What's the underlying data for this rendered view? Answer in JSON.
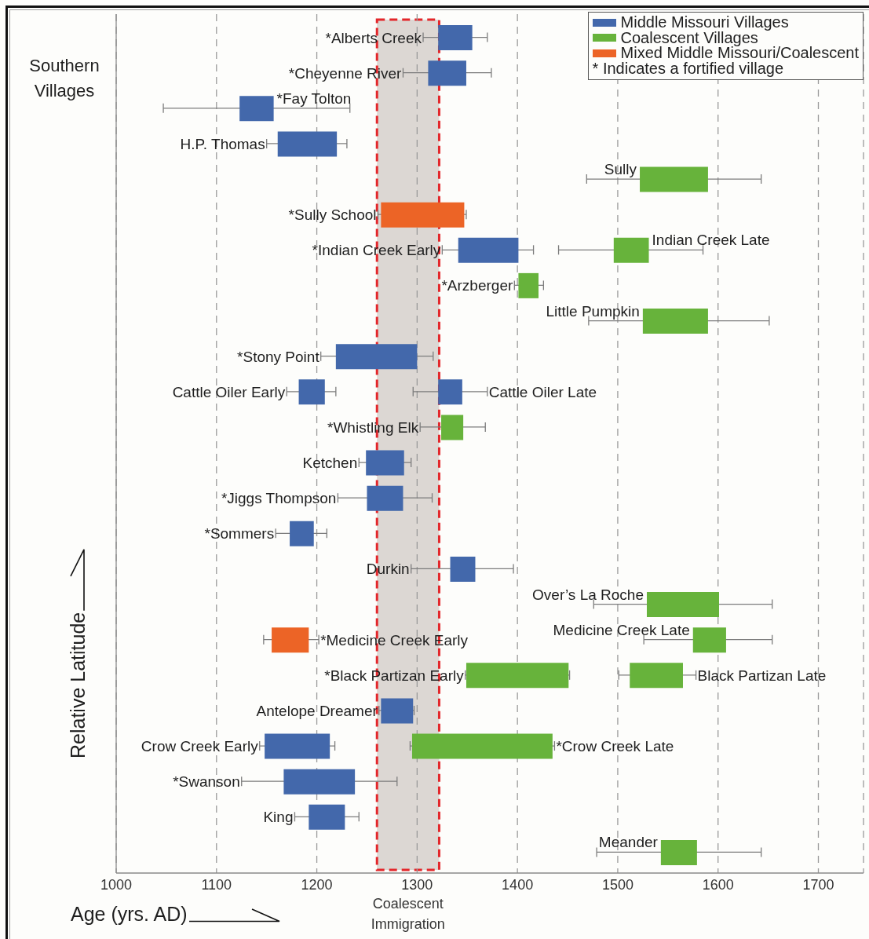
{
  "chart_data": {
    "type": "bar",
    "orientation": "horizontal",
    "xlabel": "Age (yrs. AD)",
    "ylabel": "Relative Latitude",
    "categories": [
      null,
      null,
      null,
      null,
      null,
      null,
      null,
      null,
      null,
      null,
      null,
      null,
      null,
      null,
      null,
      null,
      null,
      null,
      null,
      null,
      null,
      null,
      null,
      null
    ],
    "xlim": [
      1000,
      1745
    ],
    "xticks": [
      1000,
      1100,
      1200,
      1300,
      1400,
      1500,
      1600,
      1700
    ],
    "grid": "x",
    "legend": "top right",
    "tick_labels": "x",
    "series": [
      {
        "name": "Middle Missouri Villages",
        "color": "#4368ab",
        "base": [
          1321,
          1311,
          1123,
          1161,
          null,
          null,
          1341,
          null,
          null,
          1219,
          1182,
          null,
          1249,
          1250,
          1173,
          1333,
          null,
          null,
          null,
          1264,
          1148,
          1167,
          1192,
          null
        ],
        "values": [
          34,
          38,
          34,
          59,
          null,
          null,
          60,
          null,
          null,
          81,
          26,
          null,
          38,
          36,
          24,
          25,
          null,
          null,
          null,
          32,
          65,
          71,
          36,
          null
        ],
        "errors": [
          [
            1306,
            1370
          ],
          [
            1286,
            1374
          ],
          [
            1047,
            1233
          ],
          [
            1150,
            1230
          ],
          null,
          null,
          [
            1325,
            1416
          ],
          null,
          null,
          [
            1204,
            1316
          ],
          [
            1170,
            1219
          ],
          null,
          [
            1242,
            1294
          ],
          [
            1221,
            1315
          ],
          [
            1159,
            1210
          ],
          [
            1294,
            1396
          ],
          null,
          null,
          null,
          [
            1262,
            1297
          ],
          [
            1143,
            1218
          ],
          [
            1125,
            1280
          ],
          [
            1178,
            1242
          ],
          null
        ],
        "value_labels": [
          "*Alberts Creek",
          "*Cheyenne River",
          "*Fay Tolton",
          "H.P. Thomas",
          null,
          null,
          "*Indian Creek Early",
          null,
          null,
          "*Stony Point",
          "Cattle Oiler Early",
          null,
          "Ketchen",
          "*Jiggs Thompson",
          "*Sommers",
          "Durkin",
          null,
          null,
          null,
          "Antelope Dreamer",
          "Crow Creek Early",
          "*Swanson",
          "King",
          null
        ]
      },
      {
        "name": "Coalescent Villages",
        "color": "#67b33b",
        "base": [
          null,
          null,
          null,
          null,
          1522,
          null,
          1496,
          1401,
          1525,
          null,
          null,
          1324,
          null,
          null,
          null,
          null,
          1529,
          1575,
          1349,
          null,
          1295,
          null,
          null,
          1543
        ],
        "values": [
          null,
          null,
          null,
          null,
          68,
          null,
          35,
          20,
          65,
          null,
          null,
          22,
          null,
          null,
          null,
          null,
          72,
          33,
          102,
          null,
          140,
          null,
          null,
          36
        ],
        "errors": [
          null,
          null,
          null,
          null,
          [
            1469,
            1643
          ],
          null,
          [
            1441,
            1585
          ],
          [
            1397,
            1426
          ],
          [
            1471,
            1651
          ],
          null,
          null,
          [
            1303,
            1368
          ],
          null,
          null,
          null,
          null,
          [
            1476,
            1654
          ],
          [
            1526,
            1654
          ],
          [
            1348,
            1452
          ],
          null,
          [
            1293,
            1437
          ],
          null,
          null,
          [
            1479,
            1643
          ]
        ],
        "value_labels": [
          null,
          null,
          null,
          null,
          "Sully",
          null,
          "Indian Creek Late",
          "*Arzberger",
          "Little Pumpkin",
          null,
          null,
          "*Whistling Elk",
          null,
          null,
          null,
          null,
          "Over’s La Roche",
          "Medicine Creek Late",
          "*Black Partizan Early",
          null,
          "*Crow Creek Late",
          null,
          null,
          "Meander"
        ]
      },
      {
        "name": "Mixed Middle Missouri/Coalescent",
        "color": "#ec6426",
        "base": [
          null,
          null,
          null,
          null,
          null,
          1264,
          null,
          null,
          null,
          null,
          null,
          null,
          null,
          null,
          null,
          null,
          null,
          1155,
          null,
          null,
          null,
          null,
          null,
          null
        ],
        "values": [
          null,
          null,
          null,
          null,
          null,
          83,
          null,
          null,
          null,
          null,
          null,
          null,
          null,
          null,
          null,
          null,
          null,
          37,
          null,
          null,
          null,
          null,
          null,
          null
        ],
        "errors": [
          null,
          null,
          null,
          null,
          null,
          [
            1261,
            1349
          ],
          null,
          null,
          null,
          null,
          null,
          null,
          null,
          null,
          null,
          null,
          null,
          [
            1147,
            1202
          ],
          null,
          null,
          null,
          null,
          null,
          null
        ],
        "value_labels": [
          null,
          null,
          null,
          null,
          null,
          "*Sully School",
          null,
          null,
          null,
          null,
          null,
          null,
          null,
          null,
          null,
          null,
          null,
          "*Medicine Creek Early",
          null,
          null,
          null,
          null,
          null,
          null
        ]
      },
      {
        "color": "#4368ab",
        "base": [
          null,
          null,
          null,
          null,
          null,
          null,
          null,
          null,
          null,
          null,
          1321,
          null,
          null,
          null,
          null,
          null,
          null,
          null,
          null,
          null,
          null,
          null,
          null,
          null
        ],
        "values": [
          null,
          null,
          null,
          null,
          null,
          null,
          null,
          null,
          null,
          null,
          24,
          null,
          null,
          null,
          null,
          null,
          null,
          null,
          null,
          null,
          null,
          null,
          null,
          null
        ],
        "errors": [
          null,
          null,
          null,
          null,
          null,
          null,
          null,
          null,
          null,
          null,
          [
            1296,
            1370
          ],
          null,
          null,
          null,
          null,
          null,
          null,
          null,
          null,
          null,
          null,
          null,
          null,
          null
        ],
        "value_labels": [
          null,
          null,
          null,
          null,
          null,
          null,
          null,
          null,
          null,
          null,
          "Cattle Oiler Late",
          null,
          null,
          null,
          null,
          null,
          null,
          null,
          null,
          null,
          null,
          null,
          null,
          null
        ]
      },
      {
        "color": "#67b33b",
        "base": [
          null,
          null,
          null,
          null,
          null,
          null,
          null,
          null,
          null,
          null,
          null,
          null,
          null,
          null,
          null,
          null,
          null,
          null,
          1512,
          null,
          null,
          null,
          null,
          null
        ],
        "values": [
          null,
          null,
          null,
          null,
          null,
          null,
          null,
          null,
          null,
          null,
          null,
          null,
          null,
          null,
          null,
          null,
          null,
          null,
          53,
          null,
          null,
          null,
          null,
          null
        ],
        "errors": [
          null,
          null,
          null,
          null,
          null,
          null,
          null,
          null,
          null,
          null,
          null,
          null,
          null,
          null,
          null,
          null,
          null,
          null,
          [
            1501,
            1578
          ],
          null,
          null,
          null,
          null,
          null
        ],
        "value_labels": [
          null,
          null,
          null,
          null,
          null,
          null,
          null,
          null,
          null,
          null,
          null,
          null,
          null,
          null,
          null,
          null,
          null,
          null,
          "Black Partizan Late",
          null,
          null,
          null,
          null,
          null
        ]
      }
    ],
    "bands": [
      {
        "axis": "x",
        "from": 1260,
        "to": 1322,
        "label": "Coalescent Immigration",
        "color": "#dcd7d3"
      }
    ],
    "annotations": [
      "Southern Villages",
      "* Indicates a fortified village"
    ]
  }
}
